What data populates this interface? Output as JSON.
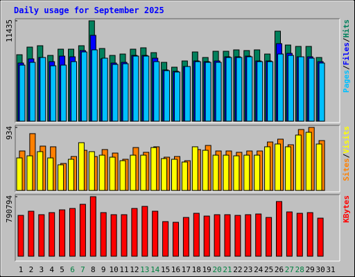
{
  "chart_data": [
    {
      "type": "bar",
      "title": "Daily usage for September 2025",
      "separator": "/",
      "ylim": [
        0,
        11435
      ],
      "yticks": [
        11435
      ],
      "series": [
        {
          "name": "Pages",
          "color": "#00c0ff",
          "values": [
            6388,
            6703,
            7255,
            6309,
            6388,
            6782,
            7886,
            8123,
            7176,
            6467,
            6545,
            7413,
            7413,
            6782,
            5757,
            5599,
            6230,
            6782,
            6703,
            6703,
            7255,
            7255,
            7334,
            6782,
            6782,
            7649,
            7492,
            7334,
            7176,
            6624,
            null
          ]
        },
        {
          "name": "Files",
          "color": "#0000ff",
          "values": [
            6624,
            7097,
            7255,
            6782,
            7413,
            7334,
            8044,
            9779,
            7097,
            6624,
            6703,
            7492,
            7492,
            7176,
            5836,
            5678,
            6230,
            6861,
            6782,
            6861,
            7334,
            7334,
            7413,
            6861,
            6861,
            8832,
            7728,
            7334,
            7334,
            6782,
            null
          ]
        },
        {
          "name": "Hits",
          "color": "#00805c",
          "values": [
            7571,
            8438,
            8596,
            7492,
            8202,
            8202,
            8596,
            11435,
            8280,
            7492,
            7649,
            8202,
            8359,
            7807,
            6703,
            6151,
            6861,
            7886,
            7255,
            7965,
            7965,
            8123,
            8044,
            8123,
            7649,
            10252,
            8675,
            8517,
            8517,
            7255,
            null
          ]
        }
      ]
    },
    {
      "type": "bar",
      "separator": "/",
      "ylim": [
        0,
        934
      ],
      "yticks": [
        934
      ],
      "series": [
        {
          "name": "Sites",
          "color": "#ff8000",
          "values": [
            585,
            842,
            657,
            647,
            400,
            503,
            595,
            503,
            606,
            554,
            462,
            636,
            565,
            647,
            493,
            503,
            441,
            606,
            667,
            585,
            585,
            565,
            585,
            585,
            718,
            760,
            677,
            903,
            934,
            739,
            null
          ]
        },
        {
          "name": "Visits",
          "color": "#ffff00",
          "values": [
            482,
            513,
            575,
            482,
            380,
            462,
            708,
            575,
            523,
            493,
            441,
            523,
            523,
            636,
            472,
            462,
            421,
            647,
            595,
            523,
            523,
            513,
            523,
            523,
            647,
            688,
            647,
            821,
            862,
            688,
            null
          ]
        }
      ]
    },
    {
      "type": "bar",
      "ylim": [
        0,
        790794
      ],
      "yticks": [
        790794
      ],
      "categories": [
        "1",
        "2",
        "3",
        "4",
        "5",
        "6",
        "7",
        "8",
        "9",
        "10",
        "11",
        "12",
        "13",
        "14",
        "15",
        "16",
        "17",
        "18",
        "19",
        "20",
        "21",
        "22",
        "23",
        "24",
        "25",
        "26",
        "27",
        "28",
        "29",
        "30",
        "31"
      ],
      "category_colors": [
        "#000000",
        "#000000",
        "#000000",
        "#000000",
        "#000000",
        "#008040",
        "#008040",
        "#000000",
        "#000000",
        "#000000",
        "#000000",
        "#000000",
        "#008040",
        "#008040",
        "#000000",
        "#000000",
        "#000000",
        "#000000",
        "#000000",
        "#008040",
        "#008040",
        "#000000",
        "#000000",
        "#000000",
        "#000000",
        "#000000",
        "#008040",
        "#008040",
        "#000000",
        "#000000",
        "#000000"
      ],
      "series": [
        {
          "name": "KBytes",
          "color": "#ff0000",
          "values": [
            542523,
            597694,
            551718,
            579304,
            616085,
            634476,
            689647,
            790794,
            579304,
            551718,
            551718,
            634476,
            662062,
            597694,
            459765,
            450570,
            514937,
            570108,
            533327,
            551718,
            551718,
            542523,
            551718,
            560913,
            514937,
            726429,
            588499,
            570108,
            579304,
            505742,
            null
          ]
        }
      ]
    }
  ]
}
